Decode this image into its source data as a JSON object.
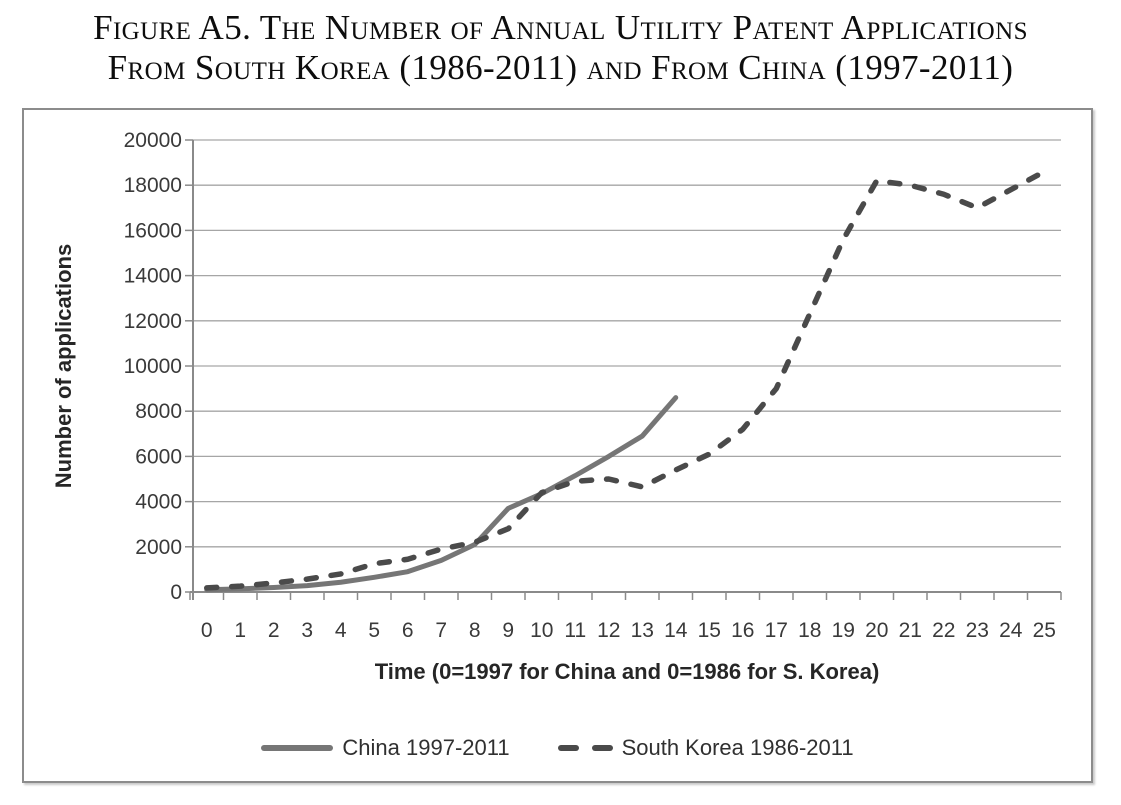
{
  "figure": {
    "title_line1": "Figure A5. The Number of Annual Utility Patent Applications",
    "title_line2": "From South Korea (1986-2011) and From China (1997-2011)"
  },
  "colors": {
    "china_line": "#767676",
    "south_korea_line": "#4a4a4a",
    "gridline": "#a6a6a6",
    "axis": "#8a8a8a",
    "chart_border": "#8c8c8c",
    "tick_label_text": "#3a3a3a",
    "axis_title_text": "#262626"
  },
  "chart_data": {
    "type": "line",
    "title": "",
    "xlabel": "Time (0=1997 for China and 0=1986 for S. Korea)",
    "ylabel": "Number of applications",
    "ylim": [
      0,
      20000
    ],
    "y_ticks": [
      0,
      2000,
      4000,
      6000,
      8000,
      10000,
      12000,
      14000,
      16000,
      18000,
      20000
    ],
    "x_ticks": [
      0,
      1,
      2,
      3,
      4,
      5,
      6,
      7,
      8,
      9,
      10,
      11,
      12,
      13,
      14,
      15,
      16,
      17,
      18,
      19,
      20,
      21,
      22,
      23,
      24,
      25
    ],
    "grid": "horizontal",
    "legend_position": "bottom",
    "series": [
      {
        "name": "China 1997-2011",
        "line_style": "solid",
        "color": "#767676",
        "x_start": 0,
        "values": [
          100,
          140,
          200,
          280,
          430,
          650,
          900,
          1400,
          2100,
          3700,
          4350,
          5150,
          6000,
          6900,
          8600
        ]
      },
      {
        "name": "South Korea 1986-2011",
        "line_style": "dashed",
        "color": "#4a4a4a",
        "x_start": 0,
        "values": [
          180,
          260,
          400,
          570,
          800,
          1250,
          1450,
          1900,
          2200,
          2800,
          4400,
          4900,
          5000,
          4650,
          5400,
          6100,
          7200,
          9000,
          12300,
          15600,
          18200,
          18000,
          17600,
          17000,
          17800,
          18600
        ]
      }
    ]
  }
}
